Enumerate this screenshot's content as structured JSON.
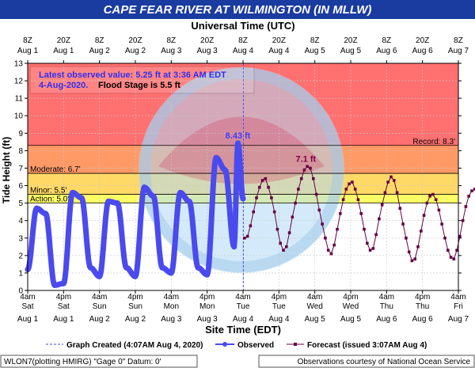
{
  "chart_data": {
    "type": "line",
    "title": "CAPE FEAR RIVER AT WILMINGTON (IN MLLW)",
    "top_axis_title": "Universal Time (UTC)",
    "bottom_axis_title": "Site Time (EDT)",
    "ylabel": "Tide Height (ft)",
    "ylim": [
      0,
      13
    ],
    "yticks": [
      "0",
      "1",
      "2",
      "3",
      "4",
      "5",
      "6",
      "7",
      "8",
      "9",
      "10",
      "11",
      "12",
      "13"
    ],
    "top_ticks": [
      {
        "hour": 0,
        "line1": "8Z",
        "line2": "Aug 1"
      },
      {
        "hour": 12,
        "line1": "20Z",
        "line2": "Aug 1"
      },
      {
        "hour": 24,
        "line1": "8Z",
        "line2": "Aug 2"
      },
      {
        "hour": 36,
        "line1": "20Z",
        "line2": "Aug 2"
      },
      {
        "hour": 48,
        "line1": "8Z",
        "line2": "Aug 3"
      },
      {
        "hour": 60,
        "line1": "20Z",
        "line2": "Aug 3"
      },
      {
        "hour": 72,
        "line1": "8Z",
        "line2": "Aug 4"
      },
      {
        "hour": 84,
        "line1": "20Z",
        "line2": "Aug 4"
      },
      {
        "hour": 96,
        "line1": "8Z",
        "line2": "Aug 5"
      },
      {
        "hour": 108,
        "line1": "20Z",
        "line2": "Aug 5"
      },
      {
        "hour": 120,
        "line1": "8Z",
        "line2": "Aug 6"
      },
      {
        "hour": 132,
        "line1": "20Z",
        "line2": "Aug 6"
      },
      {
        "hour": 144,
        "line1": "8Z",
        "line2": "Aug 7"
      }
    ],
    "bottom_ticks": [
      {
        "hour": 0,
        "time": "4am",
        "day": "Sat",
        "date": "Aug 1"
      },
      {
        "hour": 12,
        "time": "4pm",
        "day": "Sat",
        "date": "Aug 1"
      },
      {
        "hour": 24,
        "time": "4am",
        "day": "Sun",
        "date": "Aug 2"
      },
      {
        "hour": 36,
        "time": "4pm",
        "day": "Sun",
        "date": "Aug 2"
      },
      {
        "hour": 48,
        "time": "4am",
        "day": "Mon",
        "date": "Aug 3"
      },
      {
        "hour": 60,
        "time": "4pm",
        "day": "Mon",
        "date": "Aug 3"
      },
      {
        "hour": 72,
        "time": "4am",
        "day": "Tue",
        "date": "Aug 4"
      },
      {
        "hour": 84,
        "time": "4pm",
        "day": "Tue",
        "date": "Aug 4"
      },
      {
        "hour": 96,
        "time": "4am",
        "day": "Wed",
        "date": "Aug 5"
      },
      {
        "hour": 108,
        "time": "4pm",
        "day": "Wed",
        "date": "Aug 5"
      },
      {
        "hour": 120,
        "time": "4am",
        "day": "Thu",
        "date": "Aug 6"
      },
      {
        "hour": 132,
        "time": "4pm",
        "day": "Thu",
        "date": "Aug 6"
      },
      {
        "hour": 144,
        "time": "4am",
        "day": "Fri",
        "date": "Aug 7"
      }
    ],
    "x_range_hours": [
      0,
      144
    ],
    "graph_created_hour": 72.1,
    "stages": [
      {
        "name": "Record",
        "label": "Record: 8.3'",
        "value": 8.3,
        "color": "#ff7070",
        "label_side": "right"
      },
      {
        "name": "Moderate",
        "label": "Moderate: 6.7'",
        "value": 6.7,
        "color": "#ff9a66",
        "label_side": "left"
      },
      {
        "name": "Minor",
        "label": "Minor: 5.5'",
        "value": 5.5,
        "color": "#ffd966",
        "label_side": "left"
      },
      {
        "name": "Action",
        "label": "Action: 5.0'",
        "value": 5.0,
        "color": "#ffff66",
        "label_side": "left"
      }
    ],
    "annotation": {
      "line1": "Latest observed value: 5.25 ft at 3:36 AM EDT",
      "line2a": "4-Aug-2020.",
      "line2b": "Flood Stage is 5.5 ft"
    },
    "peak_labels": [
      {
        "text": "8.43 ft",
        "hour": 70.3,
        "value": 8.43,
        "color": "#4040ee"
      },
      {
        "text": "7.1 ft",
        "hour": 93.0,
        "value": 7.1,
        "color": "#800040"
      }
    ],
    "observed": {
      "name": "Observed",
      "color": "#4a4aee",
      "points": [
        [
          0,
          1.2
        ],
        [
          3,
          4.7
        ],
        [
          6,
          4.4
        ],
        [
          9,
          0.3
        ],
        [
          12,
          0.4
        ],
        [
          15,
          5.6
        ],
        [
          18,
          5.3
        ],
        [
          21,
          1.3
        ],
        [
          24,
          0.8
        ],
        [
          27,
          5.1
        ],
        [
          30,
          5.0
        ],
        [
          33,
          1.3
        ],
        [
          36,
          0.8
        ],
        [
          39,
          5.9
        ],
        [
          42,
          5.4
        ],
        [
          45,
          1.3
        ],
        [
          48,
          1.0
        ],
        [
          51,
          5.6
        ],
        [
          54,
          5.1
        ],
        [
          57,
          1.3
        ],
        [
          60,
          0.9
        ],
        [
          63,
          7.6
        ],
        [
          66,
          6.9
        ],
        [
          69,
          2.5
        ],
        [
          70.3,
          8.43
        ],
        [
          72,
          5.25
        ]
      ]
    },
    "forecast": {
      "name": "Forecast (issued 3:07AM Aug 4)",
      "color": "#660044",
      "points": [
        [
          72.5,
          3.0
        ],
        [
          73.5,
          3.1
        ],
        [
          74.5,
          3.7
        ],
        [
          75.5,
          4.5
        ],
        [
          76.5,
          5.3
        ],
        [
          77.5,
          5.9
        ],
        [
          78.5,
          6.3
        ],
        [
          79.5,
          6.4
        ],
        [
          80.5,
          5.9
        ],
        [
          81.5,
          5.3
        ],
        [
          82.5,
          4.5
        ],
        [
          83.5,
          3.5
        ],
        [
          84.5,
          2.7
        ],
        [
          85.5,
          2.3
        ],
        [
          86.5,
          2.5
        ],
        [
          87.5,
          3.3
        ],
        [
          88.5,
          4.2
        ],
        [
          89.5,
          5.0
        ],
        [
          90.5,
          5.8
        ],
        [
          91.5,
          6.4
        ],
        [
          92.5,
          6.9
        ],
        [
          93.5,
          7.1
        ],
        [
          94.5,
          7.0
        ],
        [
          95.5,
          6.4
        ],
        [
          96.5,
          5.5
        ],
        [
          97.5,
          4.6
        ],
        [
          98.5,
          3.8
        ],
        [
          99.5,
          3.0
        ],
        [
          100.5,
          2.3
        ],
        [
          101.5,
          2.1
        ],
        [
          102.5,
          2.6
        ],
        [
          103.5,
          3.5
        ],
        [
          104.5,
          4.4
        ],
        [
          105.5,
          5.2
        ],
        [
          106.5,
          5.8
        ],
        [
          107.5,
          6.1
        ],
        [
          108.5,
          6.2
        ],
        [
          109.5,
          5.8
        ],
        [
          110.5,
          5.2
        ],
        [
          111.5,
          4.4
        ],
        [
          112.5,
          3.5
        ],
        [
          113.5,
          2.7
        ],
        [
          114.5,
          2.3
        ],
        [
          115.5,
          2.4
        ],
        [
          116.5,
          3.2
        ],
        [
          117.5,
          4.1
        ],
        [
          118.5,
          4.9
        ],
        [
          119.5,
          5.6
        ],
        [
          120.5,
          6.2
        ],
        [
          121.5,
          6.5
        ],
        [
          122.5,
          6.3
        ],
        [
          123.5,
          5.6
        ],
        [
          124.5,
          4.7
        ],
        [
          125.5,
          3.8
        ],
        [
          126.5,
          3.0
        ],
        [
          127.5,
          2.2
        ],
        [
          128.5,
          1.7
        ],
        [
          129.5,
          1.8
        ],
        [
          130.5,
          2.5
        ],
        [
          131.5,
          3.4
        ],
        [
          132.5,
          4.3
        ],
        [
          133.5,
          5.0
        ],
        [
          134.5,
          5.4
        ],
        [
          135.5,
          5.5
        ],
        [
          136.5,
          5.2
        ],
        [
          137.5,
          4.6
        ],
        [
          138.5,
          3.8
        ],
        [
          139.5,
          3.0
        ],
        [
          140.5,
          2.3
        ],
        [
          141.5,
          1.9
        ],
        [
          142.5,
          1.8
        ],
        [
          143.5,
          2.3
        ],
        [
          144.5,
          3.1
        ],
        [
          145.5,
          4.0
        ],
        [
          146.5,
          4.8
        ],
        [
          147.5,
          5.4
        ],
        [
          148.5,
          5.7
        ],
        [
          149.5,
          5.8
        ],
        [
          150.5,
          5.5
        ]
      ]
    },
    "legend": {
      "graph_created": "Graph Created (4:07AM Aug 4, 2020)",
      "observed": "Observed",
      "forecast": "Forecast (issued 3:07AM Aug 4)"
    },
    "footer_left": "WLON7(plotting HMIRG) \"Gage 0\" Datum: 0'",
    "footer_right": "Observations courtesy of National Ocean Service",
    "colors": {
      "title_bg": "#1a3ba0",
      "title_fg": "#ffffff",
      "plot_bg": "#ffffff",
      "grid": "#c8c8c8"
    }
  }
}
